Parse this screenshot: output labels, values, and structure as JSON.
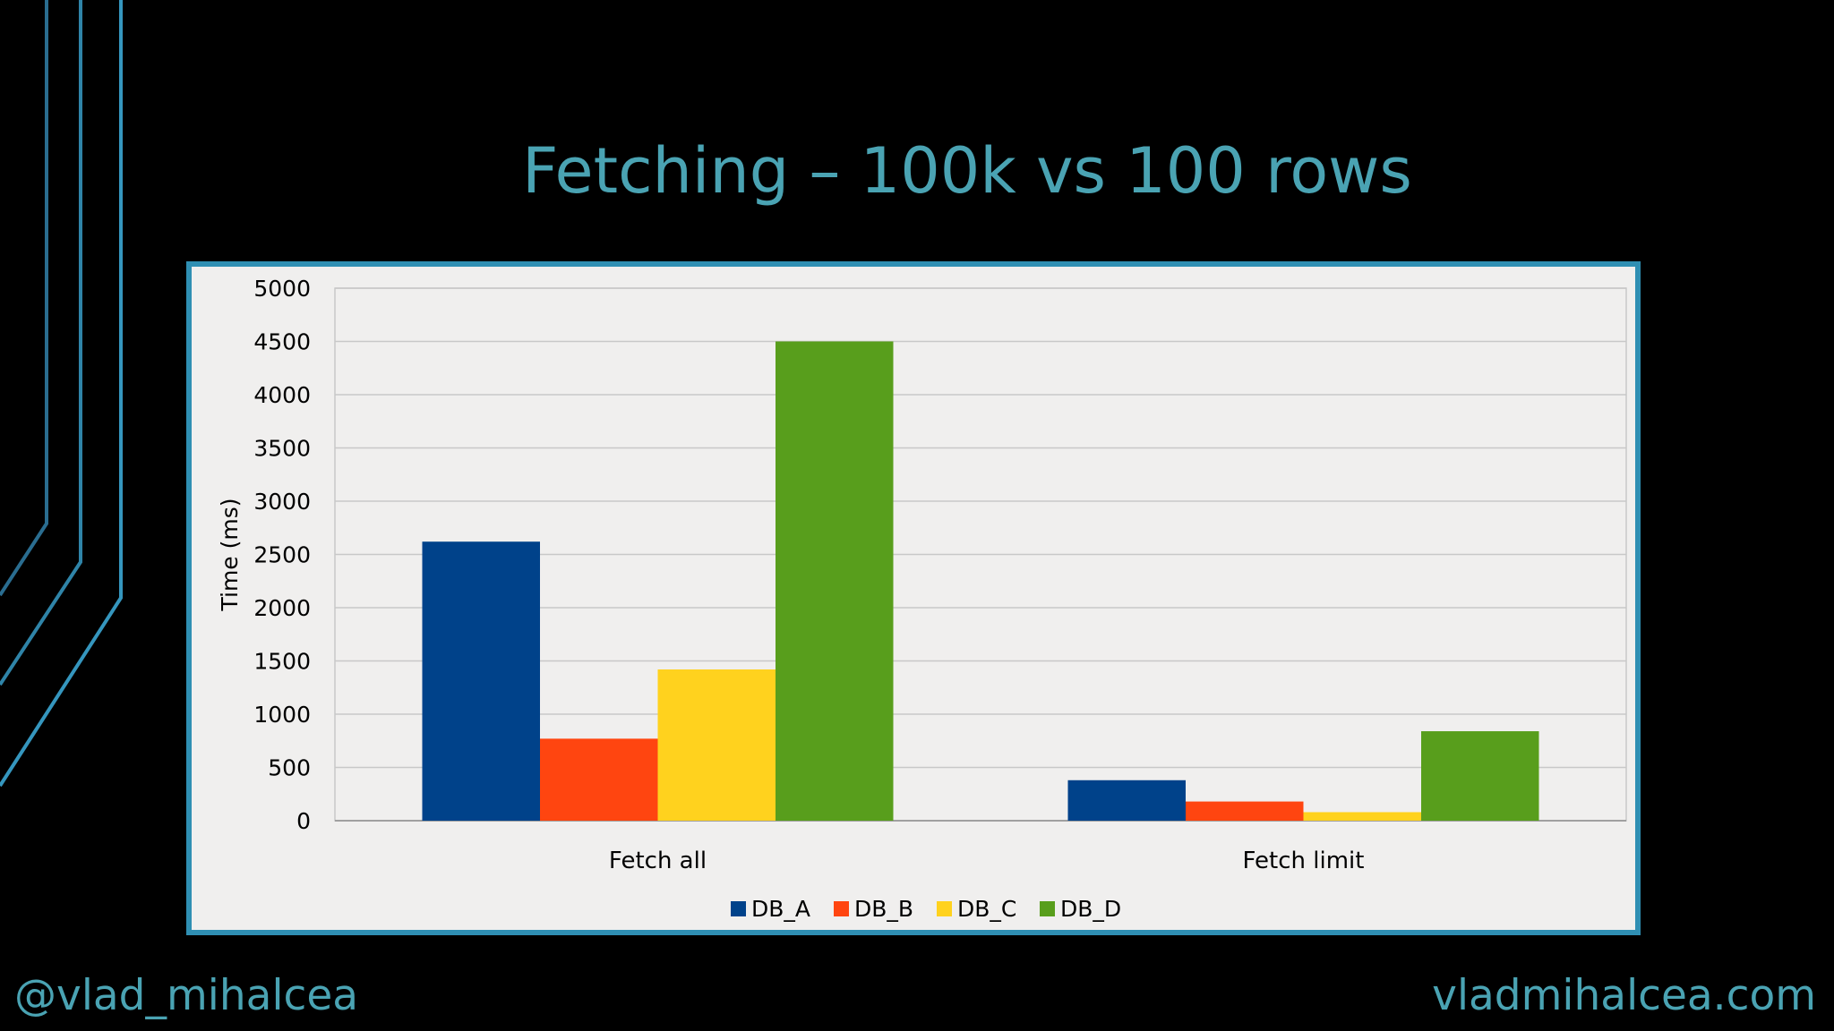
{
  "slide": {
    "title": "Fetching – 100k vs 100 rows",
    "footer_left": "@vlad_mihalcea",
    "footer_right": "vladmihalcea.com"
  },
  "colors": {
    "background": "#000000",
    "accent": "#4aa3b3",
    "frame_border": "#2f8fb3",
    "chart_background": "#f0efee",
    "gridline": "#c8c8c8"
  },
  "chart_data": {
    "type": "bar",
    "title": "",
    "xlabel": "",
    "ylabel": "Time (ms)",
    "ylim": [
      0,
      5000
    ],
    "yticks": [
      0,
      500,
      1000,
      1500,
      2000,
      2500,
      3000,
      3500,
      4000,
      4500,
      5000
    ],
    "grid": true,
    "legend": "bottom",
    "categories": [
      "Fetch all",
      "Fetch limit"
    ],
    "series": [
      {
        "name": "DB_A",
        "color": "#00428a",
        "values": [
          2620,
          380
        ]
      },
      {
        "name": "DB_B",
        "color": "#ff4510",
        "values": [
          770,
          180
        ]
      },
      {
        "name": "DB_C",
        "color": "#ffd21e",
        "values": [
          1420,
          80
        ]
      },
      {
        "name": "DB_D",
        "color": "#589e1c",
        "values": [
          4500,
          840
        ]
      }
    ]
  }
}
